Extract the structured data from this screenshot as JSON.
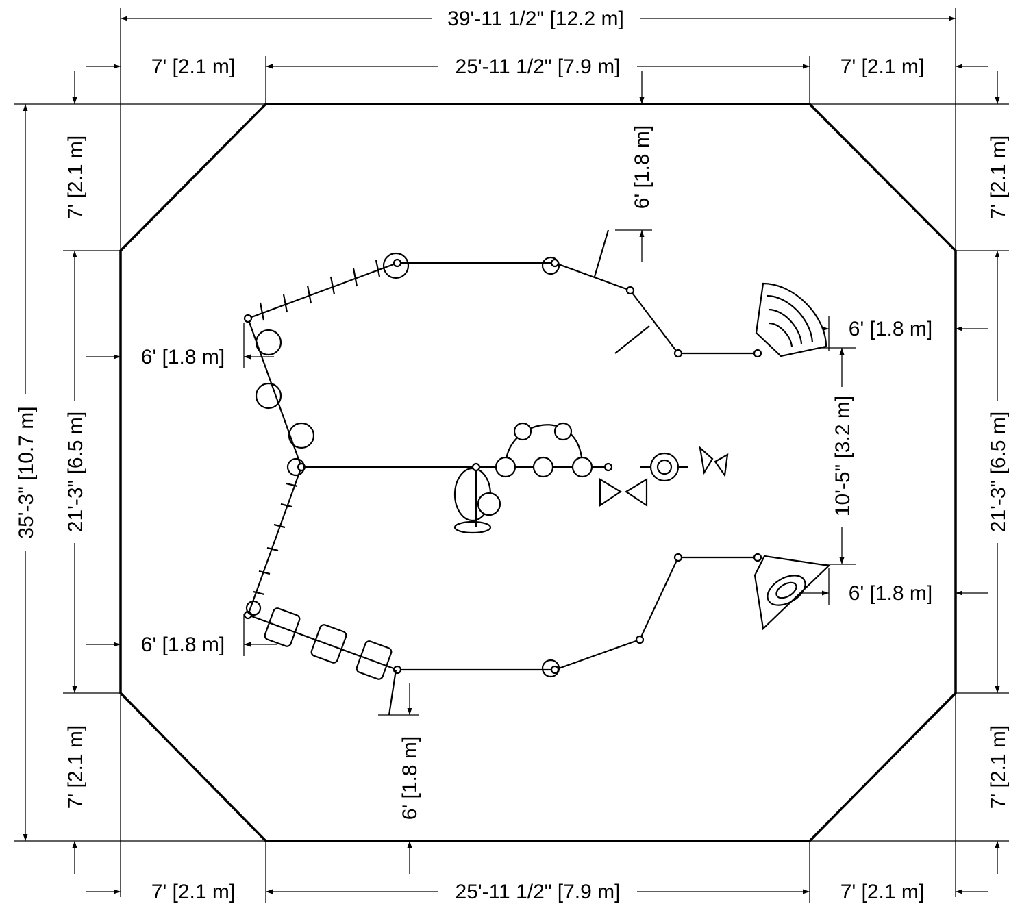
{
  "dimensions": {
    "overall_width": "39'-11 1/2\" [12.2 m]",
    "top_left": "7' [2.1 m]",
    "top_center": "25'-11 1/2\" [7.9 m]",
    "top_right": "7' [2.1 m]",
    "bottom_left": "7' [2.1 m]",
    "bottom_center": "25'-11 1/2\" [7.9 m]",
    "bottom_right": "7' [2.1 m]",
    "overall_height": "35'-3\" [10.7 m]",
    "left_top": "7' [2.1 m]",
    "left_middle": "21'-3\" [6.5 m]",
    "left_bottom": "7' [2.1 m]",
    "right_top": "7' [2.1 m]",
    "right_middle": "21'-3\" [6.5 m]",
    "right_bottom": "7' [2.1 m]",
    "clearance_top": "6' [1.8 m]",
    "clearance_bottom": "6' [1.8 m]",
    "clearance_left_upper": "6' [1.8 m]",
    "clearance_left_lower": "6' [1.8 m]",
    "clearance_right_upper": "6' [1.8 m]",
    "clearance_right_lower": "6' [1.8 m]",
    "slide_gap": "10'-5\" [3.2 m]"
  }
}
